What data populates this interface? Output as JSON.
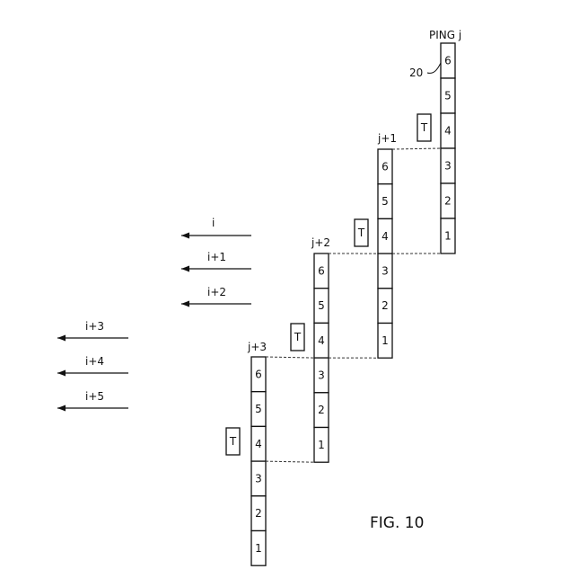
{
  "figure_label": "FIG. 10",
  "ref_numeral": "20",
  "pings": [
    {
      "label": "PING j",
      "cells": [
        "6",
        "5",
        "4",
        "3",
        "2",
        "1"
      ],
      "t_label": "T"
    },
    {
      "label": "j+1",
      "cells": [
        "6",
        "5",
        "4",
        "3",
        "2",
        "1"
      ],
      "t_label": "T"
    },
    {
      "label": "j+2",
      "cells": [
        "6",
        "5",
        "4",
        "3",
        "2",
        "1"
      ],
      "t_label": "T"
    },
    {
      "label": "j+3",
      "cells": [
        "6",
        "5",
        "4",
        "3",
        "2",
        "1"
      ],
      "t_label": "T"
    }
  ],
  "arrows": [
    {
      "label": "i"
    },
    {
      "label": "i+1"
    },
    {
      "label": "i+2"
    },
    {
      "label": "i+3"
    },
    {
      "label": "i+4"
    },
    {
      "label": "i+5"
    }
  ]
}
